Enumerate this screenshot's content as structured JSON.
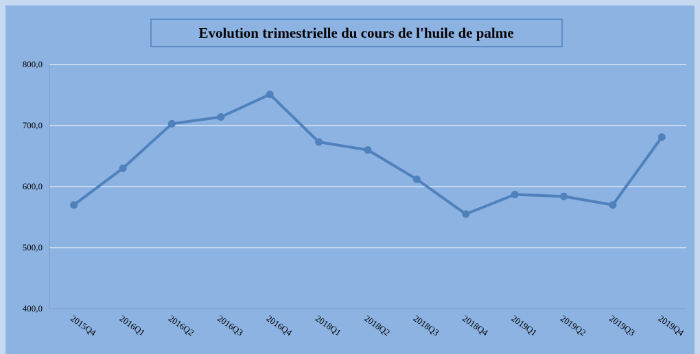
{
  "chart_data": {
    "type": "line",
    "title": "Evolution trimestrielle du cours de l'huile de palme",
    "categories": [
      "2015Q4",
      "2016Q1",
      "2016Q2",
      "2016Q3",
      "2016Q4",
      "2018Q1",
      "2018Q2",
      "2018Q3",
      "2018Q4",
      "2019Q1",
      "2019Q2",
      "2019Q3",
      "2019Q4"
    ],
    "values": [
      570,
      630,
      703,
      714,
      751,
      673,
      660,
      612,
      555,
      587,
      584,
      570,
      681
    ],
    "color": "#4f81bd",
    "ylim": [
      400,
      800
    ],
    "yticks": [
      {
        "value": 400,
        "label": "400,0"
      },
      {
        "value": 500,
        "label": "500,0"
      },
      {
        "value": 600,
        "label": "600,0"
      },
      {
        "value": 700,
        "label": "700,0"
      },
      {
        "value": 800,
        "label": "800,0"
      }
    ],
    "grid": true
  }
}
